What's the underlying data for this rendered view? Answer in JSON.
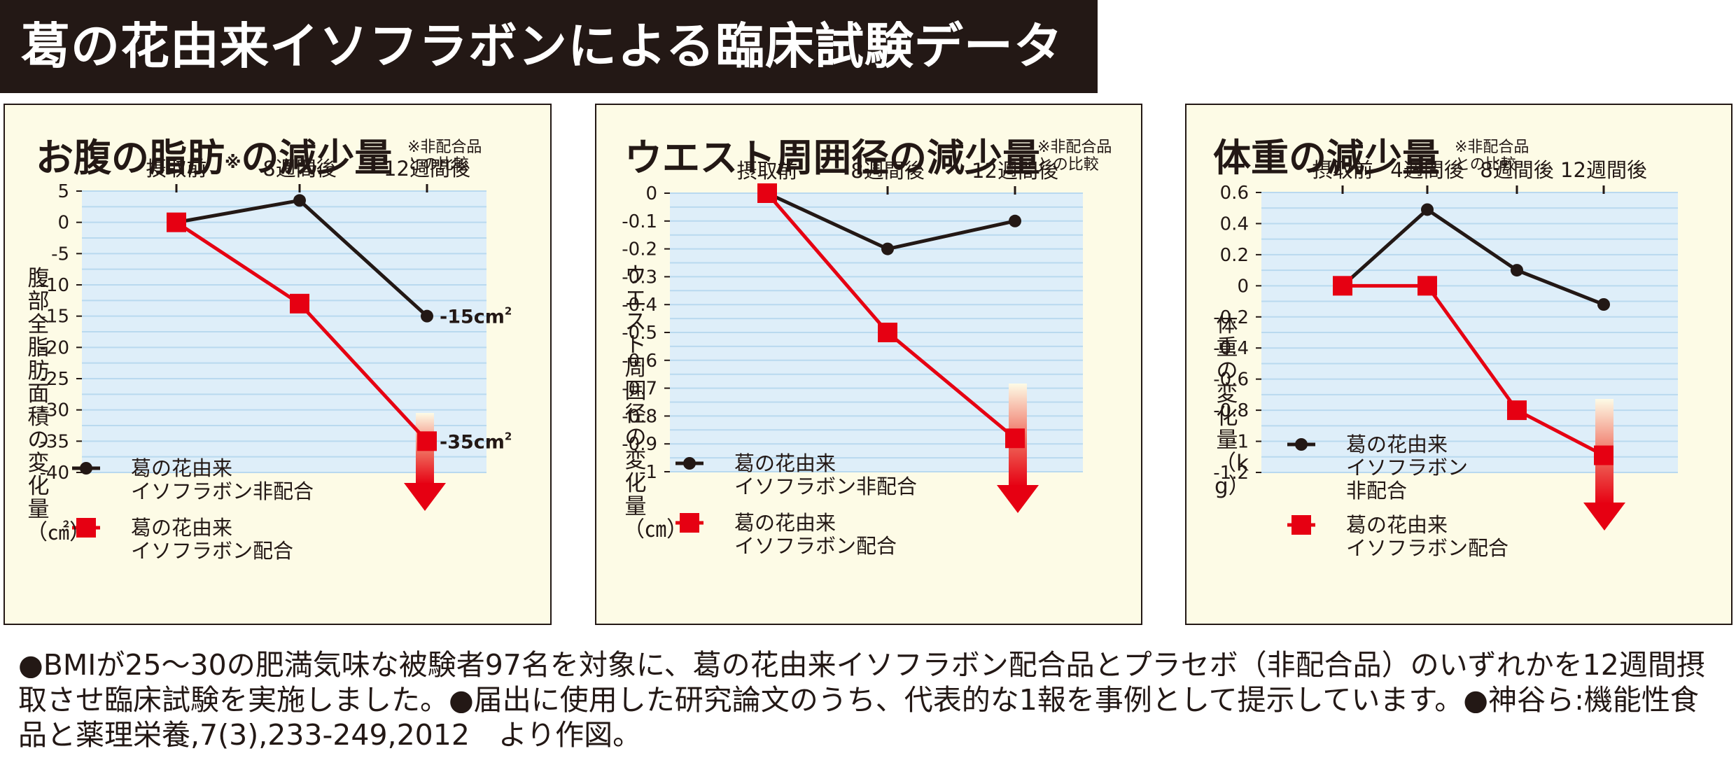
{
  "page_title": "葛の花由来イソフラボンによる臨床試験データ",
  "footnote": "●BMIが25～30の肥満気味な被験者97名を対象に、葛の花由来イソフラボン配合品とプラセボ（非配合品）のいずれかを12週間摂取させ臨床試験を実施しました。●届出に使用した研究論文のうち、代表的な1報を事例として提示しています。●神谷ら:機能性食品と薬理栄養,7(3),233-249,2012　より作図。",
  "colors": {
    "plot_bg": "#deeef9",
    "grid": "#b9d9ef",
    "panel_bg": "#fdfbe6",
    "black_series": "#231815",
    "red_series": "#e60012",
    "title_bar": "#231815"
  },
  "chart_data": [
    {
      "type": "line",
      "title": "お腹の脂肪",
      "title_mark": "※",
      "title_suffix": "の減少量",
      "note": [
        "※非配合品",
        "との比較"
      ],
      "ylabel": "腹部全脂肪面積の変化量（㎠）",
      "categories": [
        "摂取前",
        "8週間後",
        "12週間後"
      ],
      "ylim": [
        -40,
        5
      ],
      "yticks": [
        "5",
        "0",
        "-5",
        "-10",
        "-15",
        "-20",
        "-25",
        "-30",
        "-35",
        "-40"
      ],
      "grid": true,
      "series": [
        {
          "name": "葛の花由来イソフラボン非配合",
          "legend": [
            "葛の花由来",
            "イソフラボン非配合"
          ],
          "color": "#231815",
          "marker": "circle",
          "values": [
            0,
            3.5,
            -15
          ]
        },
        {
          "name": "葛の花由来イソフラボン配合",
          "legend": [
            "葛の花由来",
            "イソフラボン配合"
          ],
          "color": "#e60012",
          "marker": "square",
          "values": [
            0,
            -13,
            -35
          ]
        }
      ],
      "annotations": {
        "black": "-15cm",
        "red": "-35cm",
        "superscript": "2"
      },
      "arrow": true
    },
    {
      "type": "line",
      "title": "ウエスト周囲径の減少量",
      "note": [
        "※非配合品",
        "との比較"
      ],
      "ylabel": "ウエスト周囲径の変化量（㎝）",
      "categories": [
        "摂取前",
        "8週間後",
        "12週間後"
      ],
      "ylim": [
        -1,
        0
      ],
      "yticks": [
        "0",
        "-0.1",
        "-0.2",
        "-0.3",
        "-0.4",
        "-0.5",
        "-0.6",
        "-0.7",
        "-0.8",
        "-0.9",
        "-1"
      ],
      "grid": true,
      "series": [
        {
          "name": "葛の花由来イソフラボン非配合",
          "legend": [
            "葛の花由来",
            "イソフラボン非配合"
          ],
          "color": "#231815",
          "marker": "circle",
          "values": [
            0,
            -0.2,
            -0.1
          ]
        },
        {
          "name": "葛の花由来イソフラボン配合",
          "legend": [
            "葛の花由来",
            "イソフラボン配合"
          ],
          "color": "#e60012",
          "marker": "square",
          "values": [
            0,
            -0.5,
            -0.88
          ]
        }
      ],
      "arrow": true
    },
    {
      "type": "line",
      "title": "体重の減少量",
      "note": [
        "※非配合品",
        "との比較"
      ],
      "ylabel": "体重の変化量（kg）",
      "categories": [
        "摂取前",
        "4週間後",
        "8週間後",
        "12週間後"
      ],
      "ylim": [
        -1.2,
        0.6
      ],
      "yticks": [
        "0.6",
        "0.4",
        "0.2",
        "0",
        "-0.2",
        "-0.4",
        "-0.6",
        "-0.8",
        "-1",
        "-1.2"
      ],
      "grid": true,
      "series": [
        {
          "name": "葛の花由来イソフラボン非配合",
          "legend": [
            "葛の花由来",
            "イソフラボン",
            "非配合"
          ],
          "color": "#231815",
          "marker": "circle",
          "values": [
            0,
            0.49,
            0.1,
            -0.12
          ]
        },
        {
          "name": "葛の花由来イソフラボン配合",
          "legend": [
            "葛の花由来",
            "イソフラボン配合"
          ],
          "color": "#e60012",
          "marker": "square",
          "values": [
            0,
            0,
            -0.8,
            -1.09
          ]
        }
      ],
      "arrow": true
    }
  ]
}
